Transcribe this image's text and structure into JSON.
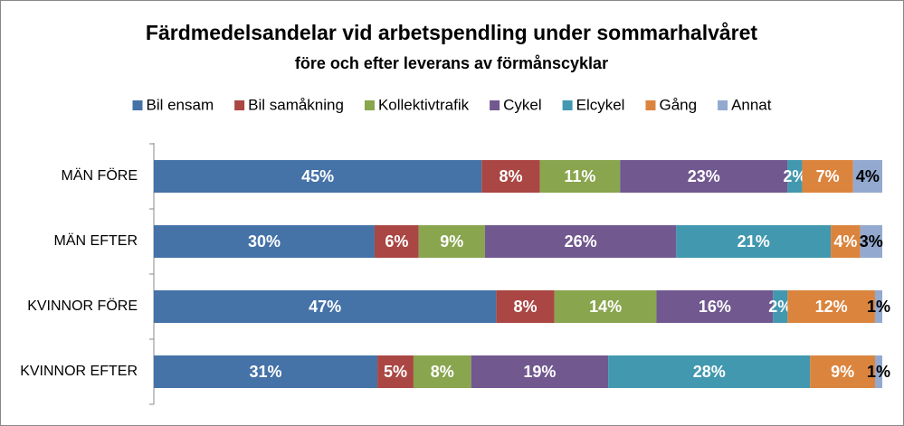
{
  "chart_data": {
    "type": "bar",
    "orientation": "horizontal",
    "stacking": "percent",
    "title": "Färdmedelsandelar vid arbetspendling under sommarhalvåret",
    "subtitle": "före och efter leverans av förmånscyklar",
    "categories": [
      "MÄN FÖRE",
      "MÄN EFTER",
      "KVINNOR FÖRE",
      "KVINNOR EFTER"
    ],
    "series": [
      {
        "name": "Bil ensam",
        "color": "#4572a7",
        "values": [
          45,
          30,
          47,
          31
        ],
        "value_labels": [
          "45%",
          "30%",
          "47%",
          "31%"
        ]
      },
      {
        "name": "Bil samåkning",
        "color": "#aa4643",
        "values": [
          8,
          6,
          8,
          5
        ],
        "value_labels": [
          "8%",
          "6%",
          "8%",
          "5%"
        ]
      },
      {
        "name": "Kollektivtrafik",
        "color": "#89a54e",
        "values": [
          11,
          9,
          14,
          8
        ],
        "value_labels": [
          "11%",
          "9%",
          "14%",
          "8%"
        ]
      },
      {
        "name": "Cykel",
        "color": "#71588f",
        "values": [
          23,
          26,
          16,
          19
        ],
        "value_labels": [
          "23%",
          "26%",
          "16%",
          "19%"
        ]
      },
      {
        "name": "Elcykel",
        "color": "#4198af",
        "values": [
          2,
          21,
          2,
          28
        ],
        "value_labels": [
          "2%",
          "21%",
          "2%",
          "28%"
        ]
      },
      {
        "name": "Gång",
        "color": "#db843d",
        "values": [
          7,
          4,
          12,
          9
        ],
        "value_labels": [
          "7%",
          "4%",
          "12%",
          "9%"
        ]
      },
      {
        "name": "Annat",
        "color": "#93a9cf",
        "values": [
          4,
          3,
          1,
          1
        ],
        "value_labels": [
          "4%",
          "3%",
          "1%",
          "1%"
        ]
      }
    ],
    "legend": "top"
  }
}
